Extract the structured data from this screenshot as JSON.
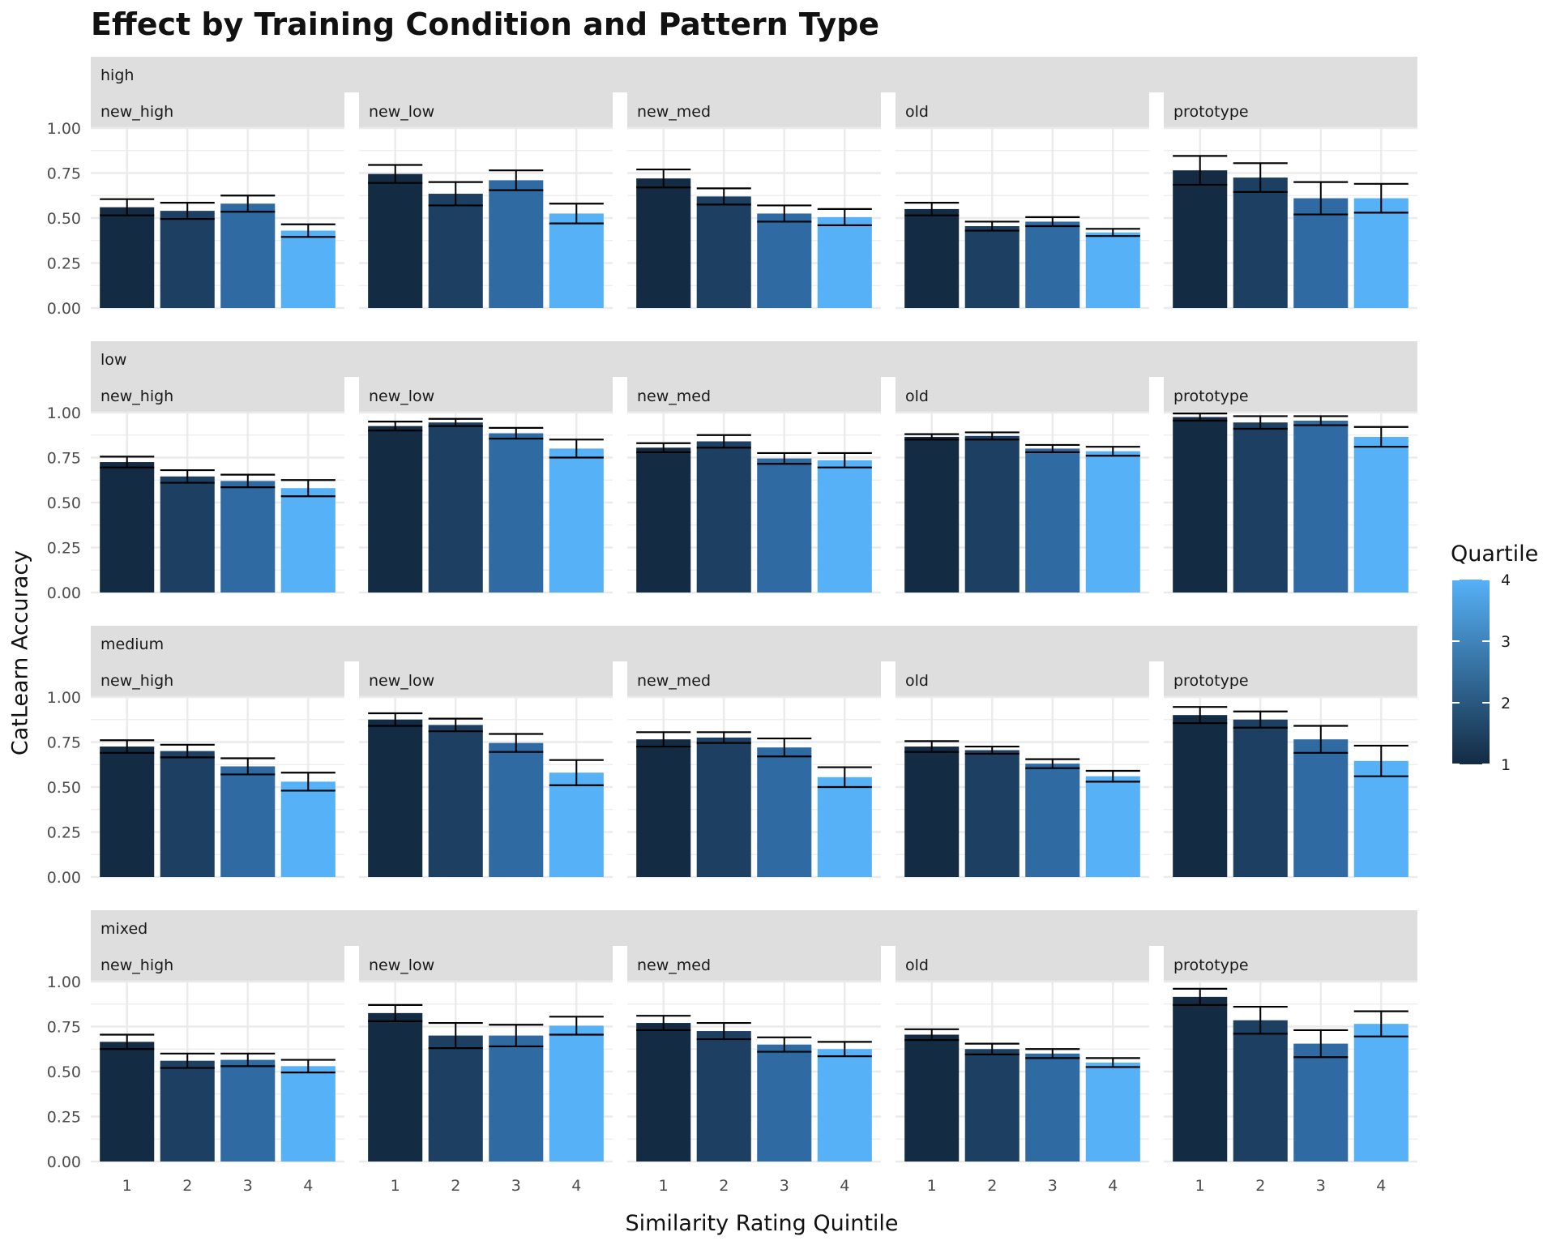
{
  "chart_data": {
    "type": "bar",
    "title": "Effect by Training Condition and Pattern Type",
    "xlabel": "Similarity Rating Quintile",
    "ylabel": "CatLearn Accuracy",
    "ylim": [
      0,
      1
    ],
    "y_ticks": [
      "0.00",
      "0.25",
      "0.50",
      "0.75",
      "1.00"
    ],
    "categories": [
      "1",
      "2",
      "3",
      "4"
    ],
    "legend": {
      "title": "Quartile",
      "ticks": [
        "1",
        "2",
        "3",
        "4"
      ],
      "range": [
        1,
        4
      ],
      "placement": "right",
      "colors": [
        "#132b43",
        "#56b1f7"
      ]
    },
    "bar_colors": [
      "#132b43",
      "#1d3f62",
      "#2f6aa3",
      "#56b1f7"
    ],
    "columns": [
      "new_high",
      "new_low",
      "new_med",
      "old",
      "prototype"
    ],
    "rows": [
      {
        "name": "high",
        "panels": [
          {
            "values": [
              0.56,
              0.54,
              0.58,
              0.43
            ],
            "error": [
              0.045,
              0.045,
              0.045,
              0.035
            ]
          },
          {
            "values": [
              0.745,
              0.635,
              0.71,
              0.525
            ],
            "error": [
              0.05,
              0.065,
              0.055,
              0.055
            ]
          },
          {
            "values": [
              0.72,
              0.62,
              0.525,
              0.505
            ],
            "error": [
              0.05,
              0.045,
              0.045,
              0.045
            ]
          },
          {
            "values": [
              0.55,
              0.455,
              0.48,
              0.42
            ],
            "error": [
              0.035,
              0.025,
              0.025,
              0.02
            ]
          },
          {
            "values": [
              0.765,
              0.725,
              0.61,
              0.61
            ],
            "error": [
              0.08,
              0.08,
              0.09,
              0.08
            ]
          }
        ]
      },
      {
        "name": "low",
        "panels": [
          {
            "values": [
              0.725,
              0.645,
              0.62,
              0.58
            ],
            "error": [
              0.03,
              0.035,
              0.035,
              0.045
            ]
          },
          {
            "values": [
              0.925,
              0.945,
              0.885,
              0.8
            ],
            "error": [
              0.025,
              0.02,
              0.03,
              0.05
            ]
          },
          {
            "values": [
              0.805,
              0.84,
              0.745,
              0.735
            ],
            "error": [
              0.025,
              0.035,
              0.03,
              0.04
            ]
          },
          {
            "values": [
              0.865,
              0.87,
              0.8,
              0.785
            ],
            "error": [
              0.015,
              0.02,
              0.02,
              0.025
            ]
          },
          {
            "values": [
              0.975,
              0.945,
              0.955,
              0.865
            ],
            "error": [
              0.02,
              0.035,
              0.025,
              0.055
            ]
          }
        ]
      },
      {
        "name": "medium",
        "panels": [
          {
            "values": [
              0.725,
              0.7,
              0.615,
              0.53
            ],
            "error": [
              0.035,
              0.035,
              0.045,
              0.05
            ]
          },
          {
            "values": [
              0.875,
              0.845,
              0.745,
              0.58
            ],
            "error": [
              0.035,
              0.035,
              0.05,
              0.07
            ]
          },
          {
            "values": [
              0.765,
              0.775,
              0.72,
              0.555
            ],
            "error": [
              0.04,
              0.03,
              0.05,
              0.055
            ]
          },
          {
            "values": [
              0.725,
              0.705,
              0.63,
              0.56
            ],
            "error": [
              0.03,
              0.02,
              0.025,
              0.03
            ]
          },
          {
            "values": [
              0.9,
              0.875,
              0.765,
              0.645
            ],
            "error": [
              0.045,
              0.045,
              0.075,
              0.085
            ]
          }
        ]
      },
      {
        "name": "mixed",
        "panels": [
          {
            "values": [
              0.665,
              0.56,
              0.565,
              0.53
            ],
            "error": [
              0.04,
              0.04,
              0.035,
              0.035
            ]
          },
          {
            "values": [
              0.825,
              0.7,
              0.7,
              0.755
            ],
            "error": [
              0.045,
              0.07,
              0.06,
              0.05
            ]
          },
          {
            "values": [
              0.77,
              0.725,
              0.65,
              0.625
            ],
            "error": [
              0.04,
              0.045,
              0.04,
              0.04
            ]
          },
          {
            "values": [
              0.705,
              0.625,
              0.6,
              0.55
            ],
            "error": [
              0.03,
              0.03,
              0.025,
              0.025
            ]
          },
          {
            "values": [
              0.915,
              0.785,
              0.655,
              0.765
            ],
            "error": [
              0.045,
              0.075,
              0.075,
              0.07
            ]
          }
        ]
      }
    ]
  }
}
